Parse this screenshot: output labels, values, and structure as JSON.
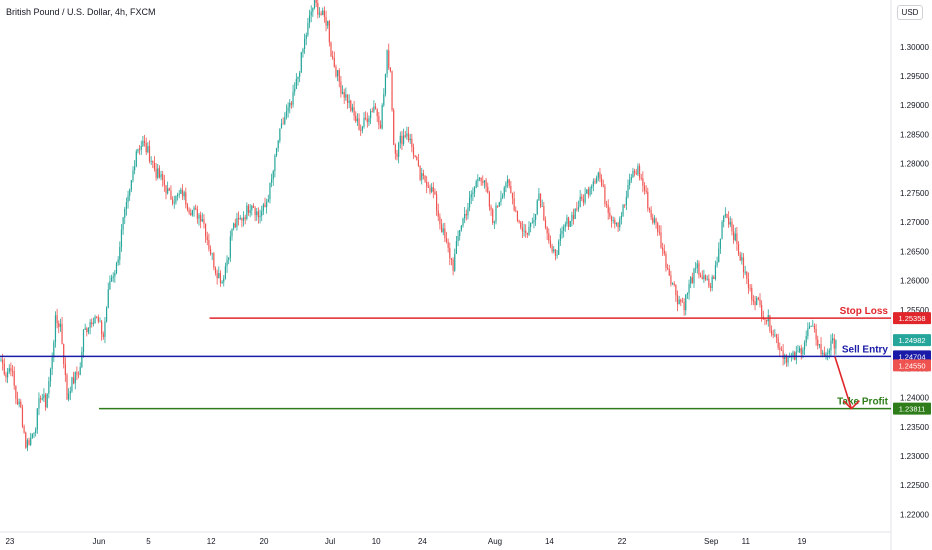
{
  "header": {
    "title": "British Pound / U.S. Dollar, 4h, FXCM",
    "currency": "USD"
  },
  "colors": {
    "up": "#26a69a",
    "down": "#ef5350",
    "stop": "#e0262b",
    "entry": "#1a1aa8",
    "target": "#2e7d1a",
    "arrow": "#e0262b"
  },
  "chart_data": {
    "type": "candlestick",
    "instrument": "British Pound / U.S. Dollar",
    "timeframe": "4h",
    "source": "FXCM",
    "ylim": [
      1.217,
      1.308
    ],
    "y_ticks": [
      "1.30000",
      "1.29500",
      "1.29000",
      "1.28500",
      "1.28000",
      "1.27500",
      "1.27000",
      "1.26500",
      "1.26000",
      "1.25500",
      "1.25000",
      "1.24500",
      "1.24000",
      "1.23500",
      "1.23000",
      "1.22500",
      "1.22000"
    ],
    "x_ticks": [
      "23",
      "Jun",
      "5",
      "12",
      "20",
      "Jul",
      "10",
      "24",
      "Aug",
      "14",
      "22",
      "Sep",
      "11",
      "19"
    ],
    "x_tick_positions": [
      6,
      60,
      90,
      128,
      160,
      200,
      228,
      256,
      300,
      333,
      377,
      431,
      452,
      486
    ],
    "close_path": [
      [
        0,
        1.2465
      ],
      [
        3,
        1.244
      ],
      [
        6,
        1.2455
      ],
      [
        9,
        1.24
      ],
      [
        12,
        1.238
      ],
      [
        15,
        1.232
      ],
      [
        18,
        1.233
      ],
      [
        21,
        1.2355
      ],
      [
        24,
        1.2405
      ],
      [
        27,
        1.239
      ],
      [
        30,
        1.2445
      ],
      [
        33,
        1.253
      ],
      [
        36,
        1.2525
      ],
      [
        38,
        1.2465
      ],
      [
        40,
        1.24
      ],
      [
        42,
        1.242
      ],
      [
        45,
        1.2435
      ],
      [
        48,
        1.245
      ],
      [
        50,
        1.251
      ],
      [
        52,
        1.252
      ],
      [
        55,
        1.2535
      ],
      [
        57,
        1.254
      ],
      [
        60,
        1.252
      ],
      [
        62,
        1.2505
      ],
      [
        64,
        1.2555
      ],
      [
        66,
        1.26
      ],
      [
        70,
        1.2625
      ],
      [
        74,
        1.27
      ],
      [
        78,
        1.275
      ],
      [
        82,
        1.2825
      ],
      [
        86,
        1.2835
      ],
      [
        90,
        1.2815
      ],
      [
        94,
        1.2785
      ],
      [
        98,
        1.277
      ],
      [
        102,
        1.2745
      ],
      [
        106,
        1.274
      ],
      [
        110,
        1.275
      ],
      [
        114,
        1.2725
      ],
      [
        118,
        1.2715
      ],
      [
        122,
        1.271
      ],
      [
        126,
        1.266
      ],
      [
        130,
        1.262
      ],
      [
        134,
        1.26
      ],
      [
        138,
        1.265
      ],
      [
        140,
        1.269
      ],
      [
        144,
        1.27
      ],
      [
        148,
        1.2715
      ],
      [
        152,
        1.2735
      ],
      [
        156,
        1.271
      ],
      [
        160,
        1.2725
      ],
      [
        164,
        1.277
      ],
      [
        168,
        1.284
      ],
      [
        172,
        1.288
      ],
      [
        176,
        1.29
      ],
      [
        180,
        1.295
      ],
      [
        184,
        1.301
      ],
      [
        188,
        1.306
      ],
      [
        190,
        1.3075
      ],
      [
        194,
        1.3055
      ],
      [
        198,
        1.304
      ],
      [
        200,
        1.299
      ],
      [
        203,
        1.296
      ],
      [
        206,
        1.293
      ],
      [
        210,
        1.291
      ],
      [
        214,
        1.288
      ],
      [
        218,
        1.286
      ],
      [
        222,
        1.288
      ],
      [
        226,
        1.29
      ],
      [
        230,
        1.287
      ],
      [
        232,
        1.292
      ],
      [
        234,
        1.2985
      ],
      [
        236,
        1.296
      ],
      [
        238,
        1.2835
      ],
      [
        240,
        1.282
      ],
      [
        242,
        1.284
      ],
      [
        246,
        1.2855
      ],
      [
        250,
        1.282
      ],
      [
        254,
        1.2775
      ],
      [
        258,
        1.277
      ],
      [
        262,
        1.275
      ],
      [
        266,
        1.27
      ],
      [
        270,
        1.266
      ],
      [
        274,
        1.2625
      ],
      [
        278,
        1.269
      ],
      [
        282,
        1.272
      ],
      [
        286,
        1.275
      ],
      [
        290,
        1.2785
      ],
      [
        294,
        1.2755
      ],
      [
        298,
        1.27
      ],
      [
        302,
        1.274
      ],
      [
        306,
        1.277
      ],
      [
        310,
        1.274
      ],
      [
        314,
        1.27
      ],
      [
        318,
        1.268
      ],
      [
        322,
        1.27
      ],
      [
        326,
        1.275
      ],
      [
        330,
        1.27
      ],
      [
        334,
        1.264
      ],
      [
        338,
        1.266
      ],
      [
        342,
        1.2695
      ],
      [
        346,
        1.271
      ],
      [
        350,
        1.273
      ],
      [
        354,
        1.2745
      ],
      [
        358,
        1.277
      ],
      [
        362,
        1.2785
      ],
      [
        366,
        1.274
      ],
      [
        370,
        1.271
      ],
      [
        374,
        1.27
      ],
      [
        378,
        1.273
      ],
      [
        382,
        1.278
      ],
      [
        386,
        1.279
      ],
      [
        390,
        1.2755
      ],
      [
        394,
        1.271
      ],
      [
        398,
        1.269
      ],
      [
        402,
        1.264
      ],
      [
        406,
        1.2605
      ],
      [
        410,
        1.257
      ],
      [
        414,
        1.256
      ],
      [
        418,
        1.26
      ],
      [
        422,
        1.262
      ],
      [
        426,
        1.26
      ],
      [
        430,
        1.259
      ],
      [
        434,
        1.263
      ],
      [
        438,
        1.272
      ],
      [
        442,
        1.27
      ],
      [
        446,
        1.266
      ],
      [
        450,
        1.262
      ],
      [
        454,
        1.258
      ],
      [
        458,
        1.2565
      ],
      [
        462,
        1.2545
      ],
      [
        466,
        1.2525
      ],
      [
        470,
        1.25
      ],
      [
        474,
        1.2475
      ],
      [
        478,
        1.2465
      ],
      [
        482,
        1.247
      ],
      [
        486,
        1.249
      ],
      [
        490,
        1.252
      ],
      [
        494,
        1.2505
      ],
      [
        498,
        1.247
      ],
      [
        502,
        1.2485
      ],
      [
        506,
        1.2498
      ]
    ],
    "horizontal_lines": [
      {
        "label": "Stop Loss",
        "value": 1.25358,
        "value_label": "1.25358",
        "color_key": "stop",
        "x_from": 127
      },
      {
        "label": "Sell Entry",
        "value": 1.24704,
        "value_label": "1.24704",
        "color_key": "entry",
        "x_from": 0
      },
      {
        "label": "Take Profit",
        "value": 1.23811,
        "value_label": "1.23811",
        "color_key": "target",
        "x_from": 60
      }
    ],
    "price_badges": [
      {
        "value": 1.24982,
        "label": "1.24982",
        "color_key": "up"
      },
      {
        "value": 1.2455,
        "label": "1.24550",
        "color_key": "down"
      }
    ],
    "projection_arrow": {
      "from": [
        506,
        1.247
      ],
      "to": [
        516,
        1.2381
      ]
    }
  }
}
